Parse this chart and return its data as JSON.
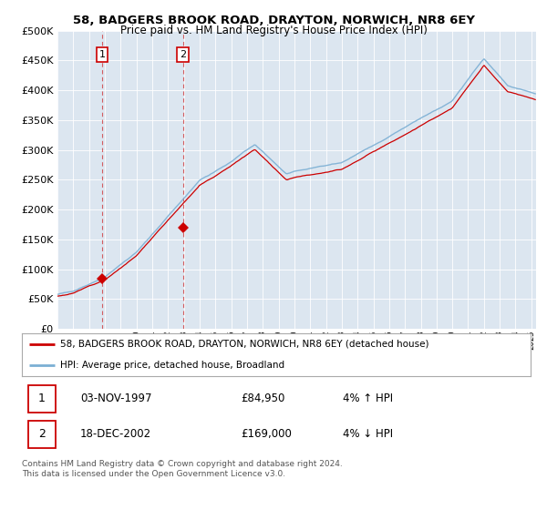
{
  "title": "58, BADGERS BROOK ROAD, DRAYTON, NORWICH, NR8 6EY",
  "subtitle": "Price paid vs. HM Land Registry's House Price Index (HPI)",
  "plot_bg_color": "#dce6f0",
  "legend_line1": "58, BADGERS BROOK ROAD, DRAYTON, NORWICH, NR8 6EY (detached house)",
  "legend_line2": "HPI: Average price, detached house, Broadland",
  "sale1_date": "03-NOV-1997",
  "sale1_price": "£84,950",
  "sale1_hpi": "4% ↑ HPI",
  "sale2_date": "18-DEC-2002",
  "sale2_price": "£169,000",
  "sale2_hpi": "4% ↓ HPI",
  "footer": "Contains HM Land Registry data © Crown copyright and database right 2024.\nThis data is licensed under the Open Government Licence v3.0.",
  "red_color": "#cc0000",
  "blue_color": "#7bafd4",
  "ylim": [
    0,
    500000
  ],
  "yticks": [
    0,
    50000,
    100000,
    150000,
    200000,
    250000,
    300000,
    350000,
    400000,
    450000,
    500000
  ],
  "sale1_x": 1997.83,
  "sale1_y": 84950,
  "sale2_x": 2002.95,
  "sale2_y": 169000,
  "xmin": 1995.0,
  "xmax": 2025.3
}
